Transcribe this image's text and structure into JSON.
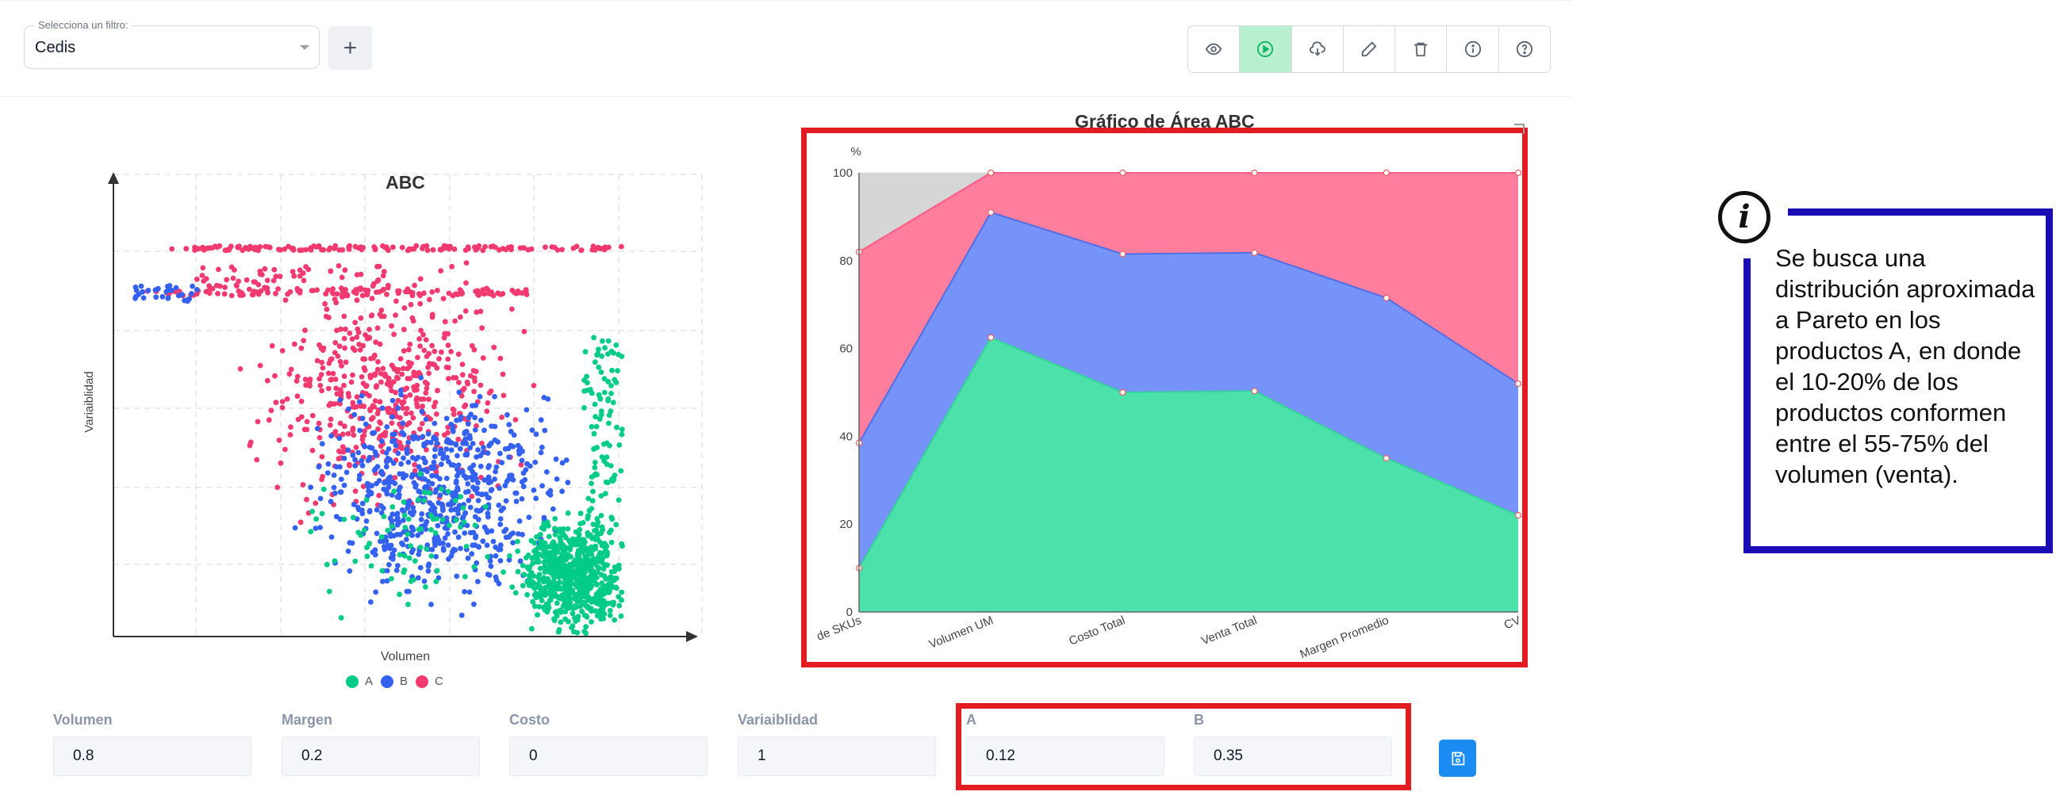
{
  "filter": {
    "label": "Selecciona un filtro:",
    "value": "Cedis"
  },
  "toolbar": {
    "buttons": [
      {
        "icon": "eye-icon",
        "active": false
      },
      {
        "icon": "play-icon",
        "active": true
      },
      {
        "icon": "cloud-download-icon",
        "active": false
      },
      {
        "icon": "pencil-icon",
        "active": false
      },
      {
        "icon": "trash-icon",
        "active": false
      },
      {
        "icon": "info-icon",
        "active": false
      },
      {
        "icon": "help-icon",
        "active": false
      }
    ]
  },
  "scatter": {
    "title": "ABC",
    "xlabel": "Volumen",
    "ylabel": "Variaiblidad",
    "legend": [
      "A",
      "B",
      "C"
    ]
  },
  "area": {
    "title": "Gráfico de Área ABC"
  },
  "colors": {
    "A": "#00cc88",
    "B": "#3461f0",
    "C": "#f13a70",
    "highlight": "#e21c21",
    "note_border": "#1b0db4",
    "save": "#1a8cf2"
  },
  "chart_data": [
    {
      "type": "scatter",
      "title": "ABC",
      "xlabel": "Volumen",
      "ylabel": "Variaiblidad",
      "legend_position": "bottom",
      "grid": true,
      "series": [
        {
          "name": "A",
          "color": "#00cc88"
        },
        {
          "name": "B",
          "color": "#3461f0"
        },
        {
          "name": "C",
          "color": "#f13a70"
        }
      ]
    },
    {
      "type": "area",
      "title": "Gráfico de Área ABC",
      "ylabel": "%",
      "ylim": [
        0,
        100
      ],
      "yticks": [
        0,
        20,
        40,
        60,
        80,
        100
      ],
      "categories": [
        "de SKUs",
        "Volumen UM",
        "Costo Total",
        "Venta Total",
        "Margen Promedio",
        "CV"
      ],
      "series": [
        {
          "color": "#4ce0ab",
          "values": [
            10,
            62.5,
            50,
            50.3,
            35,
            22
          ]
        },
        {
          "color": "#7693fa",
          "values": [
            38.5,
            91,
            81.5,
            81.8,
            71.5,
            52
          ]
        },
        {
          "color": "#ff7d9d",
          "values": [
            82,
            100,
            100,
            100,
            100,
            100
          ]
        },
        {
          "color": "#d6d6d6",
          "values": [
            100,
            100,
            100,
            100,
            100,
            100
          ]
        }
      ]
    }
  ],
  "params": [
    {
      "label": "Volumen",
      "value": "0.8"
    },
    {
      "label": "Margen",
      "value": "0.2"
    },
    {
      "label": "Costo",
      "value": "0"
    },
    {
      "label": "Variaiblidad",
      "value": "1"
    },
    {
      "label": "A",
      "value": "0.12"
    },
    {
      "label": "B",
      "value": "0.35"
    }
  ],
  "note": {
    "text": "Se busca una distribución aproximada a Pareto en los productos A, en donde el 10-20% de los productos conformen entre el 55-75% del volumen (venta)."
  }
}
